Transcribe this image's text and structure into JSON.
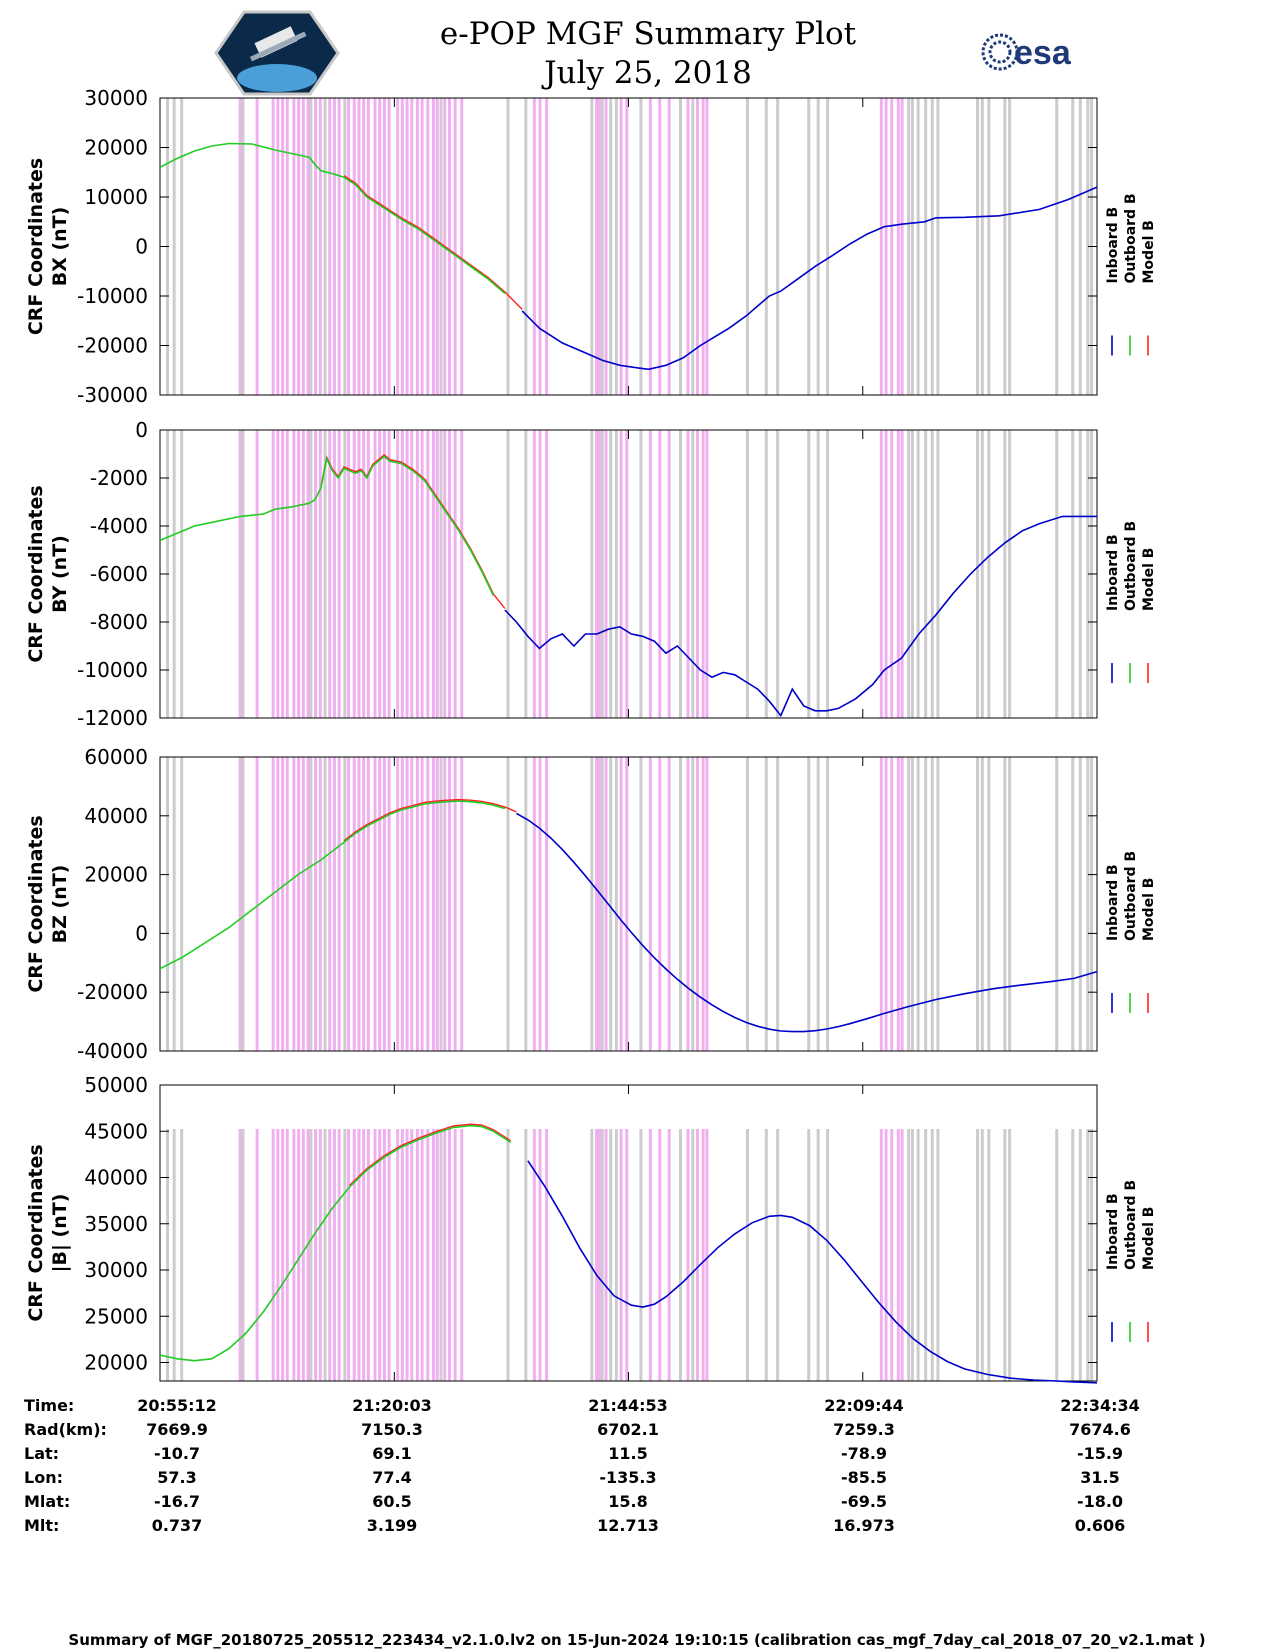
{
  "header": {
    "title_line1": "e-POP MGF Summary Plot",
    "title_line2": "July 25, 2018",
    "left_logo": "cassiope-mission-logo",
    "right_logo_text": "esa"
  },
  "legend": {
    "inboard": "Inboard B",
    "outboard": "Outboard B",
    "model": "Model B"
  },
  "colors": {
    "inboard": "#0000cc",
    "outboard": "#22cc22",
    "model": "#ff2222",
    "gray_band": "#cccccc",
    "pink_band": "#f0b0f0"
  },
  "table": {
    "labels": [
      "Time:",
      "Rad(km):",
      "Lat:",
      "Lon:",
      "Mlat:",
      "Mlt:"
    ],
    "columns": [
      [
        "20:55:12",
        "7669.9",
        "-10.7",
        "57.3",
        "-16.7",
        "0.737"
      ],
      [
        "21:20:03",
        "7150.3",
        "69.1",
        "77.4",
        "60.5",
        "3.199"
      ],
      [
        "21:44:53",
        "6702.1",
        "11.5",
        "-135.3",
        "15.8",
        "12.713"
      ],
      [
        "22:09:44",
        "7259.3",
        "-78.9",
        "-85.5",
        "-69.5",
        "16.973"
      ],
      [
        "22:34:34",
        "7674.6",
        "-15.9",
        "31.5",
        "-18.0",
        "0.606"
      ]
    ]
  },
  "footer": "Summary of MGF_20180725_205512_223434_v2.1.0.lv2 on 15-Jun-2024 19:10:15 (calibration cas_mgf_7day_cal_2018_07_20_v2.1.mat )",
  "chart_data": [
    {
      "type": "line",
      "ylabel_line1": "CRF Coordinates",
      "ylabel_line2": "BX (nT)",
      "ylim": [
        -30000,
        30000
      ],
      "ytick_labels": [
        "30000",
        "20000",
        "10000",
        "0",
        "-10000",
        "-20000",
        "-30000"
      ],
      "ytick_values": [
        30000,
        20000,
        10000,
        0,
        -10000,
        -20000,
        -30000
      ],
      "xlim_minutes": [
        0,
        99.37
      ],
      "xtick_minutes": [
        24.85,
        49.68,
        74.53
      ],
      "green_until_min": 37.4,
      "series_points": [
        [
          0,
          16000
        ],
        [
          3,
          17800
        ],
        [
          6,
          19300
        ],
        [
          9,
          20300
        ],
        [
          12,
          20800
        ],
        [
          16,
          20700
        ],
        [
          20,
          19500
        ],
        [
          24,
          18500
        ],
        [
          26,
          18000
        ],
        [
          27,
          16500
        ],
        [
          28,
          15300
        ],
        [
          30,
          14700
        ],
        [
          32,
          14000
        ],
        [
          34,
          12500
        ],
        [
          36,
          10000
        ],
        [
          38,
          8500
        ],
        [
          40,
          7000
        ],
        [
          42,
          5500
        ],
        [
          45,
          3500
        ],
        [
          48,
          1000
        ],
        [
          51,
          -1500
        ],
        [
          54,
          -4000
        ],
        [
          57,
          -6500
        ],
        [
          60,
          -9500
        ],
        [
          63,
          -13000
        ],
        [
          66,
          -16500
        ],
        [
          70,
          -19500
        ],
        [
          74,
          -21500
        ],
        [
          77,
          -23000
        ],
        [
          80,
          -24000
        ],
        [
          83,
          -24500
        ],
        [
          85,
          -24800
        ],
        [
          88,
          -24000
        ],
        [
          91,
          -22500
        ],
        [
          94,
          -20000
        ],
        [
          96,
          -18600
        ],
        [
          99,
          -16500
        ],
        [
          102,
          -14000
        ],
        [
          104,
          -12000
        ],
        [
          106,
          -10000
        ],
        [
          108,
          -9000
        ],
        [
          111,
          -6500
        ],
        [
          114,
          -4000
        ],
        [
          117,
          -1800
        ],
        [
          120,
          500
        ],
        [
          123,
          2500
        ],
        [
          126,
          4000
        ],
        [
          129,
          4500
        ],
        [
          133,
          5000
        ],
        [
          135,
          5800
        ],
        [
          140,
          5900
        ],
        [
          146,
          6200
        ],
        [
          153,
          7500
        ],
        [
          158,
          9500
        ],
        [
          163,
          12000
        ]
      ]
    },
    {
      "type": "line",
      "ylabel_line1": "CRF Coordinates",
      "ylabel_line2": "BY (nT)",
      "ylim": [
        -12000,
        0
      ],
      "ytick_labels": [
        "0",
        "-2000",
        "-4000",
        "-6000",
        "-8000",
        "-10000",
        "-12000"
      ],
      "ytick_values": [
        0,
        -2000,
        -4000,
        -6000,
        -8000,
        -10000,
        -12000
      ],
      "xlim_minutes": [
        0,
        99.37
      ],
      "xtick_minutes": [
        24.85,
        49.68,
        74.53
      ],
      "green_until_min": 35.9,
      "series_points": [
        [
          0,
          -4600
        ],
        [
          3,
          -4300
        ],
        [
          6,
          -4000
        ],
        [
          10,
          -3800
        ],
        [
          14,
          -3600
        ],
        [
          18,
          -3500
        ],
        [
          20,
          -3300
        ],
        [
          23,
          -3200
        ],
        [
          26,
          -3050
        ],
        [
          27,
          -2900
        ],
        [
          28,
          -2400
        ],
        [
          29,
          -1200
        ],
        [
          30,
          -1700
        ],
        [
          31,
          -2000
        ],
        [
          32,
          -1600
        ],
        [
          34,
          -1800
        ],
        [
          35,
          -1700
        ],
        [
          36,
          -2000
        ],
        [
          37,
          -1500
        ],
        [
          38,
          -1300
        ],
        [
          39,
          -1100
        ],
        [
          40,
          -1300
        ],
        [
          42,
          -1400
        ],
        [
          44,
          -1700
        ],
        [
          46,
          -2100
        ],
        [
          48,
          -2800
        ],
        [
          50,
          -3500
        ],
        [
          52,
          -4200
        ],
        [
          54,
          -5000
        ],
        [
          56,
          -5900
        ],
        [
          58,
          -6900
        ],
        [
          60,
          -7500
        ],
        [
          62,
          -8000
        ],
        [
          64,
          -8600
        ],
        [
          66,
          -9100
        ],
        [
          68,
          -8700
        ],
        [
          70,
          -8500
        ],
        [
          72,
          -9000
        ],
        [
          74,
          -8500
        ],
        [
          76,
          -8500
        ],
        [
          78,
          -8300
        ],
        [
          80,
          -8200
        ],
        [
          82,
          -8500
        ],
        [
          84,
          -8600
        ],
        [
          86,
          -8800
        ],
        [
          88,
          -9300
        ],
        [
          90,
          -9000
        ],
        [
          92,
          -9500
        ],
        [
          94,
          -10000
        ],
        [
          96,
          -10300
        ],
        [
          98,
          -10100
        ],
        [
          100,
          -10200
        ],
        [
          102,
          -10500
        ],
        [
          104,
          -10800
        ],
        [
          106,
          -11300
        ],
        [
          108,
          -11900
        ],
        [
          110,
          -10800
        ],
        [
          112,
          -11500
        ],
        [
          114,
          -11700
        ],
        [
          116,
          -11700
        ],
        [
          118,
          -11600
        ],
        [
          121,
          -11200
        ],
        [
          124,
          -10600
        ],
        [
          126,
          -10000
        ],
        [
          129,
          -9500
        ],
        [
          132,
          -8500
        ],
        [
          135,
          -7700
        ],
        [
          138,
          -6800
        ],
        [
          141,
          -6000
        ],
        [
          144,
          -5300
        ],
        [
          147,
          -4700
        ],
        [
          150,
          -4200
        ],
        [
          153,
          -3900
        ],
        [
          157,
          -3600
        ],
        [
          159,
          -3600
        ],
        [
          163,
          -3600
        ]
      ]
    },
    {
      "type": "line",
      "ylabel_line1": "CRF Coordinates",
      "ylabel_line2": "BZ (nT)",
      "ylim": [
        -40000,
        60000
      ],
      "ytick_labels": [
        "60000",
        "40000",
        "20000",
        "0",
        "-20000",
        "-40000"
      ],
      "ytick_values": [
        60000,
        40000,
        20000,
        0,
        -20000,
        -40000
      ],
      "xlim_minutes": [
        0,
        99.37
      ],
      "xtick_minutes": [
        24.85,
        49.68,
        74.53
      ],
      "green_until_min": 37.4,
      "series_points": [
        [
          0,
          -12000
        ],
        [
          4,
          -8000
        ],
        [
          8,
          -3000
        ],
        [
          12,
          2000
        ],
        [
          16,
          8000
        ],
        [
          20,
          14000
        ],
        [
          24,
          20000
        ],
        [
          28,
          25000
        ],
        [
          30,
          28000
        ],
        [
          32,
          31000
        ],
        [
          34,
          34000
        ],
        [
          36,
          36500
        ],
        [
          38,
          38500
        ],
        [
          40,
          40500
        ],
        [
          42,
          42000
        ],
        [
          44,
          43000
        ],
        [
          46,
          44000
        ],
        [
          48,
          44500
        ],
        [
          50,
          44800
        ],
        [
          52,
          45000
        ],
        [
          54,
          44800
        ],
        [
          56,
          44400
        ],
        [
          58,
          43600
        ],
        [
          60,
          42500
        ],
        [
          62,
          40800
        ],
        [
          64,
          38600
        ],
        [
          66,
          35800
        ],
        [
          68,
          32400
        ],
        [
          70,
          28500
        ],
        [
          72,
          24200
        ],
        [
          74,
          19600
        ],
        [
          76,
          14800
        ],
        [
          78,
          9900
        ],
        [
          80,
          5000
        ],
        [
          82,
          300
        ],
        [
          84,
          -4200
        ],
        [
          86,
          -8300
        ],
        [
          88,
          -12100
        ],
        [
          90,
          -15600
        ],
        [
          92,
          -18800
        ],
        [
          94,
          -21700
        ],
        [
          96,
          -24300
        ],
        [
          98,
          -26600
        ],
        [
          100,
          -28600
        ],
        [
          102,
          -30300
        ],
        [
          104,
          -31600
        ],
        [
          106,
          -32600
        ],
        [
          108,
          -33200
        ],
        [
          110,
          -33400
        ],
        [
          112,
          -33400
        ],
        [
          114,
          -33100
        ],
        [
          116,
          -32500
        ],
        [
          118,
          -31700
        ],
        [
          120,
          -30700
        ],
        [
          123,
          -29000
        ],
        [
          126,
          -27200
        ],
        [
          130,
          -25000
        ],
        [
          135,
          -22500
        ],
        [
          140,
          -20500
        ],
        [
          145,
          -18800
        ],
        [
          150,
          -17500
        ],
        [
          155,
          -16400
        ],
        [
          159,
          -15300
        ],
        [
          163,
          -13000
        ]
      ]
    },
    {
      "type": "line",
      "ylabel_line1": "CRF Coordinates",
      "ylabel_line2": "|B| (nT)",
      "ylim": [
        18000,
        50000
      ],
      "ytick_labels": [
        "50000",
        "45000",
        "40000",
        "35000",
        "30000",
        "25000",
        "20000"
      ],
      "ytick_values": [
        50000,
        45000,
        40000,
        35000,
        30000,
        25000,
        20000
      ],
      "xlim_minutes": [
        0,
        99.37
      ],
      "xtick_minutes": [
        24.85,
        49.68,
        74.53
      ],
      "green_until_min": 37.4,
      "series_points": [
        [
          0,
          20800
        ],
        [
          3,
          20400
        ],
        [
          6,
          20200
        ],
        [
          9,
          20400
        ],
        [
          12,
          21500
        ],
        [
          15,
          23200
        ],
        [
          18,
          25500
        ],
        [
          21,
          28200
        ],
        [
          24,
          31100
        ],
        [
          27,
          34000
        ],
        [
          30,
          36700
        ],
        [
          33,
          39000
        ],
        [
          36,
          40800
        ],
        [
          39,
          42200
        ],
        [
          42,
          43300
        ],
        [
          45,
          44100
        ],
        [
          48,
          44800
        ],
        [
          51,
          45400
        ],
        [
          54,
          45600
        ],
        [
          56,
          45500
        ],
        [
          58,
          45000
        ],
        [
          61,
          43800
        ],
        [
          64,
          41800
        ],
        [
          67,
          39000
        ],
        [
          70,
          35800
        ],
        [
          73,
          32400
        ],
        [
          76,
          29400
        ],
        [
          79,
          27200
        ],
        [
          82,
          26200
        ],
        [
          84,
          26000
        ],
        [
          86,
          26300
        ],
        [
          88,
          27100
        ],
        [
          91,
          28700
        ],
        [
          94,
          30600
        ],
        [
          97,
          32400
        ],
        [
          100,
          33900
        ],
        [
          103,
          35100
        ],
        [
          106,
          35800
        ],
        [
          108,
          35900
        ],
        [
          110,
          35700
        ],
        [
          113,
          34800
        ],
        [
          116,
          33200
        ],
        [
          119,
          31100
        ],
        [
          122,
          28800
        ],
        [
          125,
          26500
        ],
        [
          128,
          24400
        ],
        [
          131,
          22600
        ],
        [
          134,
          21200
        ],
        [
          137,
          20100
        ],
        [
          140,
          19300
        ],
        [
          144,
          18700
        ],
        [
          148,
          18300
        ],
        [
          152,
          18100
        ],
        [
          156,
          18000
        ],
        [
          159,
          17900
        ],
        [
          163,
          17800
        ]
      ]
    }
  ],
  "event_bands_minutes": {
    "gray": [
      0.8,
      1.5,
      2.3,
      8.8,
      16.0,
      17.5,
      19.6,
      29.8,
      36.9,
      38.8,
      45.8,
      46.9,
      47.8,
      48.4,
      51.0,
      55.2,
      56.5,
      62.3,
      64.3,
      65.5,
      68.8,
      69.8,
      70.8,
      79.4,
      79.8,
      80.4,
      81.2,
      81.9,
      82.5,
      86.7,
      87.2,
      87.9,
      89.6,
      90.1,
      95.1,
      96.8,
      97.6,
      98.4,
      98.8
    ],
    "pink": [
      8.5,
      10.3,
      12.0,
      12.5,
      13.0,
      13.5,
      14.2,
      14.7,
      15.2,
      15.7,
      16.5,
      17.0,
      18.0,
      18.5,
      19.0,
      20.0,
      20.6,
      21.1,
      21.6,
      22.1,
      22.8,
      23.3,
      23.8,
      24.3,
      25.2,
      25.7,
      26.2,
      26.7,
      27.3,
      27.8,
      28.4,
      29.0,
      29.4,
      30.2,
      30.7,
      31.3,
      32.0,
      39.7,
      40.3,
      41.0,
      46.3,
      46.6,
      47.3,
      48.9,
      49.5,
      52.0,
      53.0,
      54.0,
      56.0,
      57.0,
      57.6,
      58.0,
      76.5,
      77.0,
      77.6,
      78.3,
      78.7
    ]
  }
}
